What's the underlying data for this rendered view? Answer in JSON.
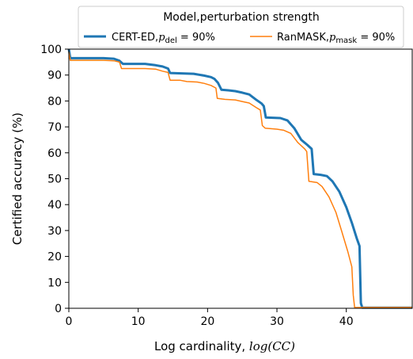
{
  "chart_data": {
    "type": "line",
    "xlabel_prefix": "Log cardinality, ",
    "xlabel_math": "log(CC)",
    "ylabel": "Certified accuracy (%)",
    "xlim": [
      0,
      49.5
    ],
    "ylim": [
      0,
      100
    ],
    "x_ticks": [
      0,
      10,
      20,
      30,
      40
    ],
    "y_ticks": [
      0,
      10,
      20,
      30,
      40,
      50,
      60,
      70,
      80,
      90,
      100
    ],
    "grid": false,
    "legend": {
      "title": "Model,perturbation strength",
      "placement": "top-center",
      "entries": [
        {
          "prefix": "CERT-ED,",
          "sym": "p",
          "sub": "del",
          "suffix": " = 90%"
        },
        {
          "prefix": "RanMASK,",
          "sym": "p",
          "sub": "mask",
          "suffix": " = 90%"
        }
      ]
    },
    "series": [
      {
        "color": "#1f77b4",
        "width": 3.0,
        "points": [
          [
            0,
            100
          ],
          [
            0.2,
            96.5
          ],
          [
            5,
            96.5
          ],
          [
            6.5,
            96.3
          ],
          [
            7.3,
            95.5
          ],
          [
            7.8,
            94.3
          ],
          [
            11,
            94.3
          ],
          [
            12.5,
            93.8
          ],
          [
            13.5,
            93.3
          ],
          [
            14.3,
            92.5
          ],
          [
            14.6,
            90.8
          ],
          [
            18,
            90.5
          ],
          [
            19.5,
            89.8
          ],
          [
            20.5,
            89.2
          ],
          [
            21,
            88.5
          ],
          [
            21.5,
            87
          ],
          [
            22,
            84.3
          ],
          [
            23,
            84.1
          ],
          [
            24,
            83.8
          ],
          [
            25,
            83.2
          ],
          [
            26,
            82.5
          ],
          [
            27,
            80.5
          ],
          [
            27.8,
            79
          ],
          [
            28.1,
            78
          ],
          [
            28.4,
            73.6
          ],
          [
            30.5,
            73.4
          ],
          [
            31.5,
            72.5
          ],
          [
            32.5,
            69.5
          ],
          [
            33.5,
            65
          ],
          [
            34.4,
            63
          ],
          [
            35,
            61.5
          ],
          [
            35.3,
            51.8
          ],
          [
            36.3,
            51.5
          ],
          [
            37.2,
            51
          ],
          [
            38,
            49
          ],
          [
            39,
            45
          ],
          [
            40,
            39
          ],
          [
            40.8,
            33
          ],
          [
            41.5,
            27
          ],
          [
            41.9,
            24
          ],
          [
            42.1,
            2
          ],
          [
            42.3,
            0.2
          ],
          [
            49.5,
            0.2
          ]
        ]
      },
      {
        "color": "#ff7f0e",
        "width": 1.5,
        "points": [
          [
            0,
            99
          ],
          [
            0.2,
            95.7
          ],
          [
            5,
            95.7
          ],
          [
            6.5,
            95.5
          ],
          [
            7.3,
            95
          ],
          [
            7.6,
            92.5
          ],
          [
            11,
            92.5
          ],
          [
            12.5,
            92.3
          ],
          [
            13.5,
            91.5
          ],
          [
            14.3,
            91
          ],
          [
            14.6,
            88
          ],
          [
            16,
            88
          ],
          [
            17,
            87.5
          ],
          [
            18.5,
            87.3
          ],
          [
            19.5,
            86.8
          ],
          [
            20.5,
            86
          ],
          [
            21.2,
            85
          ],
          [
            21.4,
            81
          ],
          [
            22.5,
            80.6
          ],
          [
            24,
            80.4
          ],
          [
            25,
            79.8
          ],
          [
            26,
            79.2
          ],
          [
            27,
            77.5
          ],
          [
            27.6,
            76.5
          ],
          [
            27.9,
            70.5
          ],
          [
            28.3,
            69.5
          ],
          [
            30,
            69.1
          ],
          [
            31,
            68.7
          ],
          [
            32,
            67.5
          ],
          [
            33,
            64
          ],
          [
            34,
            61.5
          ],
          [
            34.3,
            60.5
          ],
          [
            34.6,
            49
          ],
          [
            35.8,
            48.5
          ],
          [
            36.5,
            47
          ],
          [
            37.5,
            43
          ],
          [
            38.5,
            37
          ],
          [
            39.3,
            30
          ],
          [
            40.2,
            22
          ],
          [
            40.8,
            16
          ],
          [
            41.0,
            5
          ],
          [
            41.2,
            0.3
          ],
          [
            49.5,
            0.3
          ]
        ]
      }
    ]
  }
}
